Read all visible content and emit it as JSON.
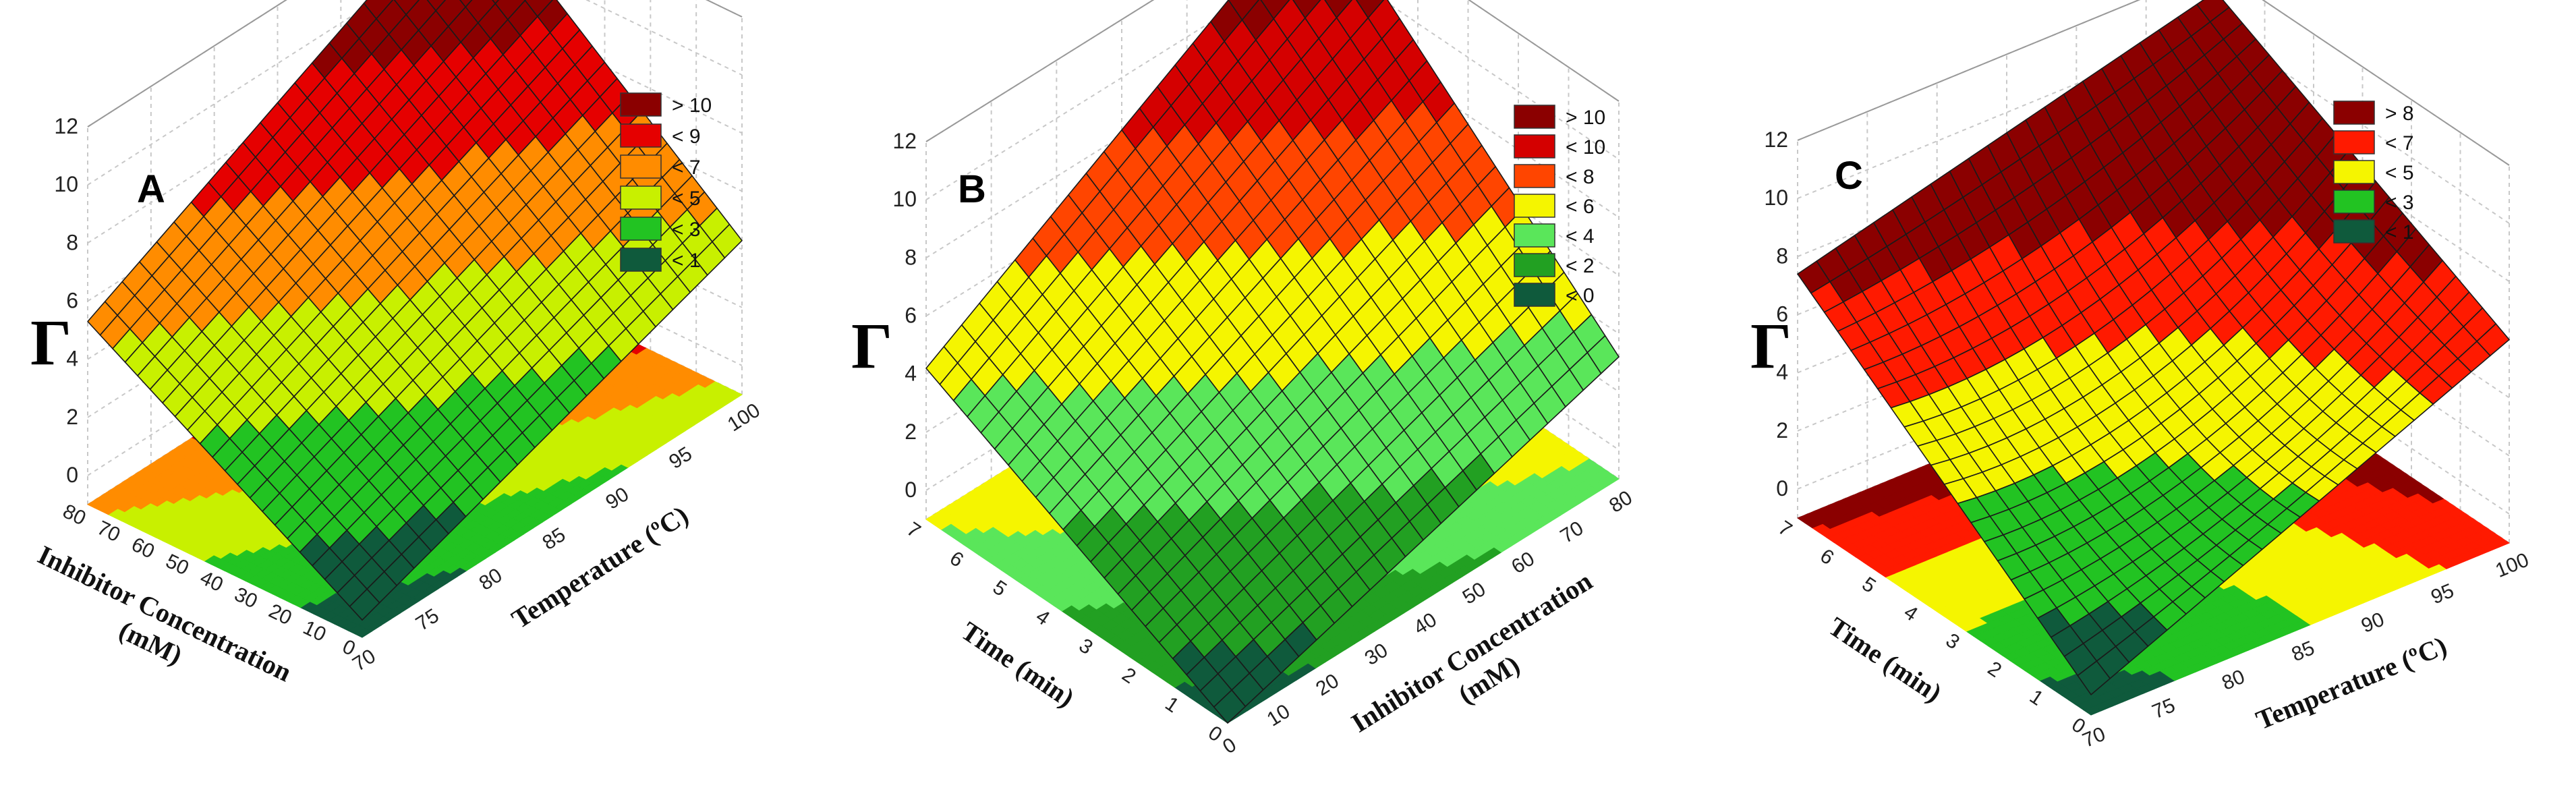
{
  "colors": {
    "dark_red": "#8B0000",
    "red": "#E50000",
    "orange_red": "#FF4500",
    "orange": "#FF8C00",
    "yellow": "#F5F500",
    "yellow_green": "#C8F000",
    "light_green": "#5AE65A",
    "green": "#22C322",
    "dark_green": "#148C28",
    "teal_green": "#0F5A3C",
    "grid": "#c8c8c8",
    "mesh": "#1a1a1a"
  },
  "chart_data": [
    {
      "type": "surface",
      "panel": "A",
      "zlabel": "Γ",
      "x_axis": {
        "label": "Temperature (ºC)",
        "ticks": [
          70,
          75,
          80,
          85,
          90,
          95,
          100
        ],
        "range": [
          70,
          100
        ]
      },
      "y_axis": {
        "label_line1": "Inhibitor Concentration",
        "label_line2": "(mM)",
        "ticks": [
          0,
          10,
          20,
          30,
          40,
          50,
          60,
          70,
          80
        ],
        "range": [
          0,
          80
        ]
      },
      "z_axis": {
        "ticks": [
          0,
          2,
          4,
          6,
          8,
          10,
          12
        ],
        "range": [
          -1,
          12
        ]
      },
      "surface_corners": {
        "z_at_xmin_ymin": -0.4,
        "z_at_xmax_ymin": 4.3,
        "z_at_xmin_ymax": 5.3,
        "z_at_xmax_ymax": 12.0
      },
      "legend": [
        {
          "label": "> 10",
          "color": "#8B0000"
        },
        {
          "label": "< 9",
          "color": "#E50000"
        },
        {
          "label": "< 7",
          "color": "#FF8C00"
        },
        {
          "label": "< 5",
          "color": "#C8F000"
        },
        {
          "label": "< 3",
          "color": "#22C322"
        },
        {
          "label": "< 1",
          "color": "#0F5A3C"
        }
      ],
      "levels": [
        1,
        3,
        5,
        7,
        9,
        10
      ]
    },
    {
      "type": "surface",
      "panel": "B",
      "zlabel": "Γ",
      "x_axis": {
        "label_line1": "Inhibitor Concentration",
        "label_line2": "(mM)",
        "ticks": [
          0,
          10,
          20,
          30,
          40,
          50,
          60,
          70,
          80
        ],
        "range": [
          0,
          80
        ]
      },
      "y_axis": {
        "label": "Time (min)",
        "ticks": [
          0,
          1,
          2,
          3,
          4,
          5,
          6,
          7
        ],
        "range": [
          0,
          7
        ]
      },
      "z_axis": {
        "ticks": [
          0,
          2,
          4,
          6,
          8,
          10,
          12
        ],
        "range": [
          -1,
          12
        ]
      },
      "surface_corners": {
        "z_at_xmin_ymin": -1.0,
        "z_at_xmax_ymin": 3.2,
        "z_at_xmin_ymax": 4.2,
        "z_at_xmax_ymax": 12.2
      },
      "legend": [
        {
          "label": "> 10",
          "color": "#8B0000"
        },
        {
          "label": "< 10",
          "color": "#D40000"
        },
        {
          "label": "< 8",
          "color": "#FF4500"
        },
        {
          "label": "< 6",
          "color": "#F5F500"
        },
        {
          "label": "< 4",
          "color": "#5AE65A"
        },
        {
          "label": "< 2",
          "color": "#22A022"
        },
        {
          "label": "< 0",
          "color": "#0F5A3C"
        }
      ],
      "levels": [
        0,
        2,
        4,
        6,
        8,
        10
      ]
    },
    {
      "type": "surface",
      "panel": "C",
      "zlabel": "Γ",
      "x_axis": {
        "label": "Temperature (ºC)",
        "ticks": [
          70,
          75,
          80,
          85,
          90,
          95,
          100
        ],
        "range": [
          70,
          100
        ]
      },
      "y_axis": {
        "label": "Time (min)",
        "ticks": [
          0,
          1,
          2,
          3,
          4,
          5,
          6,
          7
        ],
        "range": [
          0,
          7
        ]
      },
      "z_axis": {
        "ticks": [
          0,
          2,
          4,
          6,
          8,
          10,
          12
        ],
        "range": [
          -1,
          12
        ]
      },
      "surface_corners": {
        "z_at_xmin_ymin": -0.3,
        "z_at_xmax_ymin": 6.0,
        "z_at_xmin_ymax": 7.4,
        "z_at_xmax_ymax": 11.2
      },
      "surface_dip": 5.0,
      "legend": [
        {
          "label": "> 8",
          "color": "#8B0000"
        },
        {
          "label": "< 7",
          "color": "#FF1A00"
        },
        {
          "label": "< 5",
          "color": "#F5F500"
        },
        {
          "label": "< 3",
          "color": "#22C322"
        },
        {
          "label": "< 1",
          "color": "#0F5A3C"
        }
      ],
      "levels": [
        1,
        3,
        5,
        7,
        8
      ]
    }
  ]
}
